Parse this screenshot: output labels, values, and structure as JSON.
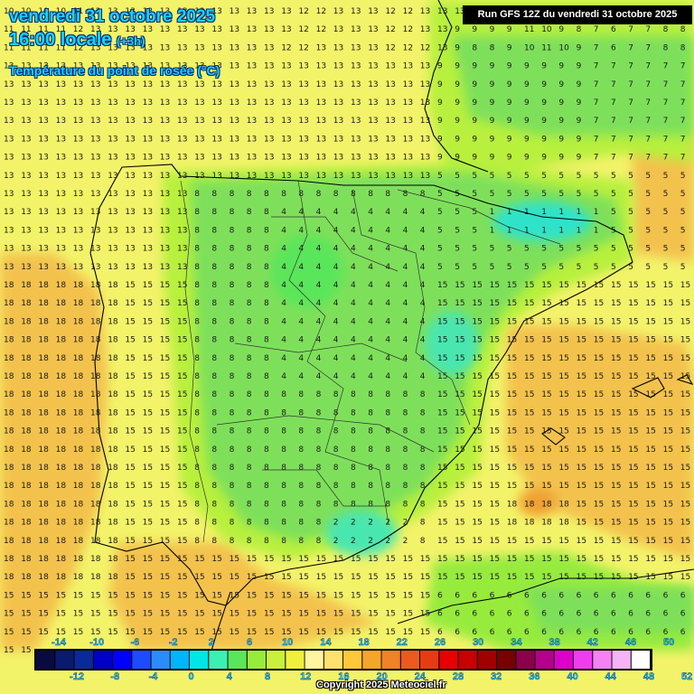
{
  "header": {
    "date_line": "vendredi 31 octobre 2025",
    "time_line": "16:00 locale",
    "time_offset": "(+3h)",
    "parameter": "Température du point de rosée (°C)",
    "run_info": "Run GFS 12Z du vendredi 31 octobre 2025"
  },
  "legend": {
    "top_labels": [
      "-14",
      "-10",
      "-6",
      "-2",
      "2",
      "6",
      "10",
      "14",
      "18",
      "22",
      "26",
      "30",
      "34",
      "38",
      "42",
      "46",
      "50"
    ],
    "bottom_labels": [
      "-12",
      "-8",
      "-4",
      "0",
      "4",
      "8",
      "12",
      "16",
      "20",
      "24",
      "28",
      "32",
      "36",
      "40",
      "44",
      "48",
      "52"
    ],
    "colors": [
      "#0a0a40",
      "#0a1a6e",
      "#0a2a9a",
      "#0000c8",
      "#0000ff",
      "#1e4bff",
      "#2b8cff",
      "#00b4ff",
      "#00e6e6",
      "#3cf0b4",
      "#5ae65a",
      "#96eb3c",
      "#c8f03c",
      "#f0f03c",
      "#fff5a0",
      "#ffe170",
      "#ffc83c",
      "#f5a52a",
      "#f08228",
      "#ec5a1e",
      "#e63c14",
      "#e60000",
      "#c80000",
      "#a00000",
      "#780000",
      "#8c004b",
      "#b4008c",
      "#dc00c8",
      "#f03cf0",
      "#f582f5",
      "#f5b4f5",
      "#ffffff"
    ]
  },
  "footer": {
    "copyright": "Copyright 2025 Meteociel.fr"
  },
  "map": {
    "region": "Spain / Portugal",
    "colors": {
      "sea_warm": "#f3c24d",
      "sea_mid": "#f3f36a",
      "land_green": "#7ee05a",
      "land_lime": "#b8f03c",
      "cold_cyan": "#2fe3c9",
      "warm_orange": "#f0a030"
    },
    "grid_rows": [
      "10 10 10 10 11 12 13 13 13 13 13 13 13 13 13 13 13 12 12 13 13 13 12 12 13 13 13 13 13 13 13 13 12 12 11 9 9 9 9 9 9 9 9 9",
      "11 11 11 11 12 13 13 13 13 13 13 13 13 13 13 13 13 12 12 13 13 13 12 12 13 13 9 9 9 9 11 10 9 8 7 6 7 7 8 8",
      "11 11 11 11 12 13 13 13 13 13 13 13 13 13 13 13 12 12 13 13 13 13 12 12 12 13 9 8 8 9 10 11 10 9 7 6 7 7 8 8"
    ]
  }
}
